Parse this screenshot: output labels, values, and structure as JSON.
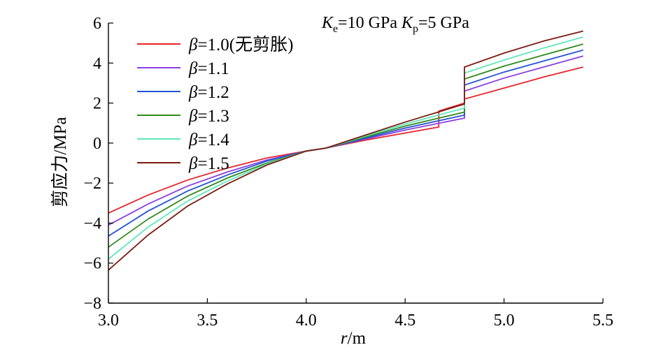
{
  "chart_data": {
    "type": "line",
    "xlabel_var": "r",
    "xlabel_unit": "/m",
    "ylabel": "剪应力/MPa",
    "xlim": [
      3.0,
      5.5
    ],
    "ylim": [
      -8,
      6
    ],
    "xticks": [
      "3.0",
      "3.5",
      "4.0",
      "4.5",
      "5.0",
      "5.5"
    ],
    "yticks": [
      "−8",
      "−6",
      "−4",
      "−2",
      "0",
      "2",
      "4",
      "6"
    ],
    "xtick_values": [
      3.0,
      3.5,
      4.0,
      4.5,
      5.0,
      5.5
    ],
    "ytick_values": [
      -8,
      -6,
      -4,
      -2,
      0,
      2,
      4,
      6
    ],
    "grid": false,
    "legend_position": "top-left",
    "annotation": {
      "k1": "K",
      "k1_sub": "e",
      "k1_val": "=10 GPa ",
      "k2": "K",
      "k2_sub": "p",
      "k2_val": "=5 GPa"
    },
    "series": [
      {
        "name": "β=1.0(无剪胀)",
        "symbol": "β",
        "label": "=1.0(无剪胀)",
        "color": "#e8242c",
        "x": [
          3.0,
          3.2,
          3.4,
          3.6,
          3.8,
          4.0,
          4.1,
          4.3,
          4.5,
          4.67,
          4.67,
          4.8,
          4.8,
          5.0,
          5.2,
          5.4
        ],
        "y": [
          -3.5,
          -2.6,
          -1.85,
          -1.25,
          -0.75,
          -0.4,
          -0.25,
          0.15,
          0.5,
          0.8,
          1.6,
          2.0,
          2.2,
          2.75,
          3.3,
          3.8
        ]
      },
      {
        "name": "β=1.1",
        "symbol": "β",
        "label": "=1.1",
        "color": "#8b3fe0",
        "x": [
          3.0,
          3.2,
          3.4,
          3.6,
          3.8,
          4.0,
          4.1,
          4.3,
          4.5,
          4.8,
          4.8,
          5.0,
          5.2,
          5.4
        ],
        "y": [
          -4.1,
          -3.05,
          -2.15,
          -1.45,
          -0.85,
          -0.4,
          -0.25,
          0.2,
          0.65,
          1.25,
          2.6,
          3.25,
          3.8,
          4.35
        ]
      },
      {
        "name": "β=1.2",
        "symbol": "β",
        "label": "=1.2",
        "color": "#2352d6",
        "x": [
          3.0,
          3.2,
          3.4,
          3.6,
          3.8,
          4.0,
          4.1,
          4.3,
          4.5,
          4.8,
          4.8,
          5.0,
          5.2,
          5.4
        ],
        "y": [
          -4.65,
          -3.4,
          -2.4,
          -1.6,
          -0.9,
          -0.4,
          -0.25,
          0.25,
          0.75,
          1.4,
          2.9,
          3.55,
          4.1,
          4.65
        ]
      },
      {
        "name": "β=1.3",
        "symbol": "β",
        "label": "=1.3",
        "color": "#2f8a1c",
        "x": [
          3.0,
          3.2,
          3.4,
          3.6,
          3.8,
          4.0,
          4.1,
          4.3,
          4.5,
          4.8,
          4.8,
          5.0,
          5.2,
          5.4
        ],
        "y": [
          -5.2,
          -3.8,
          -2.65,
          -1.75,
          -1.0,
          -0.4,
          -0.25,
          0.3,
          0.85,
          1.55,
          3.2,
          3.85,
          4.4,
          4.95
        ]
      },
      {
        "name": "β=1.4",
        "symbol": "β",
        "label": "=1.4",
        "color": "#5fe8b8",
        "x": [
          3.0,
          3.2,
          3.4,
          3.6,
          3.8,
          4.0,
          4.1,
          4.3,
          4.5,
          4.8,
          4.8,
          5.0,
          5.2,
          5.4
        ],
        "y": [
          -5.8,
          -4.2,
          -2.9,
          -1.9,
          -1.05,
          -0.4,
          -0.25,
          0.35,
          0.95,
          1.75,
          3.5,
          4.15,
          4.75,
          5.3
        ]
      },
      {
        "name": "β=1.5",
        "symbol": "β",
        "label": "=1.5",
        "color": "#7a1b10",
        "x": [
          3.0,
          3.2,
          3.4,
          3.6,
          3.8,
          4.0,
          4.1,
          4.3,
          4.5,
          4.8,
          4.8,
          5.0,
          5.2,
          5.4
        ],
        "y": [
          -6.35,
          -4.6,
          -3.15,
          -2.05,
          -1.1,
          -0.4,
          -0.25,
          0.4,
          1.05,
          1.95,
          3.8,
          4.5,
          5.1,
          5.6
        ]
      }
    ]
  }
}
